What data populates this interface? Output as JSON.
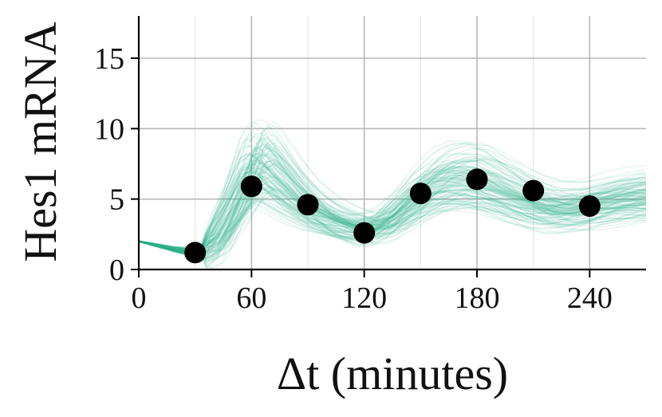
{
  "chart_data": {
    "type": "scatter",
    "title": "",
    "xlabel": "Δt (minutes)",
    "ylabel": "Hes1 mRNA",
    "xlim": [
      0,
      270
    ],
    "ylim": [
      0,
      18
    ],
    "xticks": [
      0,
      60,
      120,
      180,
      240
    ],
    "yticks": [
      0,
      5,
      10,
      15
    ],
    "grid": true,
    "series": [
      {
        "kind": "points",
        "x": [
          30,
          60,
          90,
          120,
          150,
          180,
          210,
          240
        ],
        "y": [
          1.2,
          5.9,
          4.6,
          2.6,
          5.4,
          6.4,
          5.6,
          4.5
        ]
      },
      {
        "kind": "posterior-sample-trajectories",
        "x": [
          0,
          10,
          20,
          30,
          40,
          50,
          60,
          65,
          70,
          80,
          90,
          100,
          110,
          120,
          130,
          140,
          150,
          160,
          170,
          180,
          190,
          200,
          210,
          220,
          230,
          240,
          250,
          260,
          270
        ],
        "y_median": [
          2.0,
          1.7,
          1.4,
          1.2,
          1.9,
          4.2,
          7.0,
          7.4,
          7.0,
          5.6,
          4.4,
          3.6,
          3.1,
          2.8,
          3.1,
          4.1,
          5.2,
          6.0,
          6.3,
          6.2,
          5.7,
          5.1,
          4.6,
          4.3,
          4.3,
          4.5,
          4.8,
          5.0,
          5.1
        ],
        "color": "#2bb08a",
        "count": 120
      }
    ],
    "colors": {
      "points": "#000000",
      "trajectories": "#2bb08a",
      "grid": "#b8b8b8"
    }
  }
}
